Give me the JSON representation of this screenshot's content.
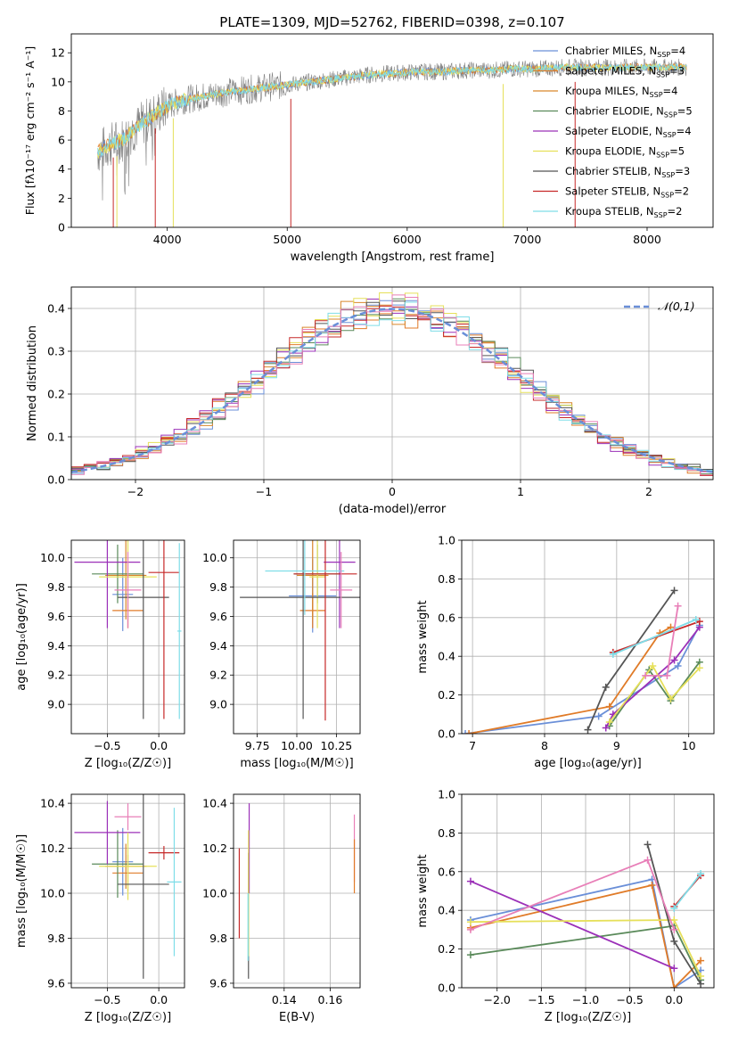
{
  "figure": {
    "title": "PLATE=1309, MJD=52762, FIBERID=0398, z=0.107",
    "colors": {
      "Chabrier MILES": "#6a8fd8",
      "Salpeter MILES": "#e07b28",
      "Kroupa MILES": "#d9862b",
      "Chabrier ELODIE": "#5a8a5a",
      "Salpeter ELODIE": "#9b30b8",
      "Kroupa ELODIE": "#e6e05a",
      "Chabrier STELIB": "#555555",
      "Salpeter STELIB": "#c62828",
      "Kroupa STELIB": "#7fdde8",
      "extra": "#e87fb8",
      "data": "#808080"
    }
  },
  "chart_data": [
    {
      "id": "spectrum",
      "type": "line",
      "xlabel": "wavelength [Angstrom, rest frame]",
      "ylabel": "Flux [fλ10⁻¹⁷ erg cm⁻² s⁻¹ A⁻¹]",
      "xlim": [
        3200,
        8550
      ],
      "ylim": [
        0,
        13.3
      ],
      "xticks": [
        4000,
        5000,
        6000,
        7000,
        8000
      ],
      "yticks": [
        0,
        2,
        4,
        6,
        8,
        10,
        12
      ],
      "grid": false,
      "legend_position": "right",
      "legend": [
        {
          "label": "Chabrier MILES, N",
          "sub": "SSP",
          "tail": "=4",
          "color": "#6a8fd8"
        },
        {
          "label": "Salpeter MILES, N",
          "sub": "SSP",
          "tail": "=3",
          "color": "#e07b28"
        },
        {
          "label": "Kroupa MILES, N",
          "sub": "SSP",
          "tail": "=4",
          "color": "#d9862b"
        },
        {
          "label": "Chabrier ELODIE, N",
          "sub": "SSP",
          "tail": "=5",
          "color": "#5a8a5a"
        },
        {
          "label": "Salpeter ELODIE, N",
          "sub": "SSP",
          "tail": "=4",
          "color": "#9b30b8"
        },
        {
          "label": "Kroupa ELODIE, N",
          "sub": "SSP",
          "tail": "=5",
          "color": "#e6e05a"
        },
        {
          "label": "Chabrier STELIB, N",
          "sub": "SSP",
          "tail": "=3",
          "color": "#555555"
        },
        {
          "label": "Salpeter STELIB, N",
          "sub": "SSP",
          "tail": "=2",
          "color": "#c62828"
        },
        {
          "label": "Kroupa STELIB, N",
          "sub": "SSP",
          "tail": "=2",
          "color": "#7fdde8"
        }
      ],
      "continuum": [
        [
          3420,
          5.2
        ],
        [
          3550,
          5.8
        ],
        [
          3650,
          6.1
        ],
        [
          3700,
          6.6
        ],
        [
          3800,
          7.2
        ],
        [
          3900,
          7.8
        ],
        [
          4000,
          8.3
        ],
        [
          4100,
          8.7
        ],
        [
          4300,
          9.0
        ],
        [
          4500,
          9.3
        ],
        [
          4700,
          9.5
        ],
        [
          4900,
          9.7
        ],
        [
          5100,
          9.9
        ],
        [
          5300,
          10.1
        ],
        [
          5500,
          10.3
        ],
        [
          5700,
          10.5
        ],
        [
          5900,
          10.6
        ],
        [
          6100,
          10.7
        ],
        [
          6300,
          10.7
        ],
        [
          6500,
          10.8
        ],
        [
          6700,
          10.8
        ],
        [
          6900,
          10.9
        ],
        [
          7100,
          10.9
        ],
        [
          7300,
          11.0
        ],
        [
          7500,
          11.0
        ],
        [
          7700,
          11.0
        ],
        [
          7900,
          11.0
        ],
        [
          8100,
          11.0
        ],
        [
          8300,
          11.0
        ]
      ],
      "dips": [
        [
          3550,
          0
        ],
        [
          3580,
          0
        ],
        [
          3900,
          0
        ],
        [
          4050,
          0
        ],
        [
          5030,
          0
        ],
        [
          6800,
          0
        ],
        [
          7400,
          0
        ]
      ]
    },
    {
      "id": "residual-histogram",
      "type": "bar",
      "xlabel": "(data-model)/error",
      "ylabel": "Normed distribution",
      "xlim": [
        -2.5,
        2.5
      ],
      "ylim": [
        0,
        0.45
      ],
      "xticks": [
        -2,
        -1,
        0,
        1,
        2
      ],
      "yticks": [
        0.0,
        0.1,
        0.2,
        0.3,
        0.4
      ],
      "grid": true,
      "legend": [
        {
          "label": "𝒩(0,1)",
          "color": "#6a8fd8",
          "style": "dashed"
        }
      ],
      "bin_width": 0.1
    },
    {
      "id": "age-vs-Z",
      "type": "scatter",
      "xlabel": "Z [log₁₀(Z/Z☉)]",
      "ylabel": "age  [log₁₀(age/yr)]",
      "xlim": [
        -0.85,
        0.25
      ],
      "ylim": [
        8.8,
        10.12
      ],
      "xticks": [
        -0.5,
        0.0
      ],
      "yticks": [
        9.0,
        9.2,
        9.4,
        9.6,
        9.8,
        10.0
      ],
      "grid": true,
      "points": [
        {
          "series": "Chabrier MILES",
          "x": -0.35,
          "xerr": 0.1,
          "y": 9.75,
          "yerr": 0.25
        },
        {
          "series": "Salpeter MILES",
          "x": -0.3,
          "xerr": 0.15,
          "y": 9.64,
          "yerr": 0.12
        },
        {
          "series": "Kroupa MILES",
          "x": -0.32,
          "xerr": 0.2,
          "y": 9.88,
          "yerr": 0.3
        },
        {
          "series": "Chabrier ELODIE",
          "x": -0.4,
          "xerr": 0.25,
          "y": 9.89,
          "yerr": 0.2
        },
        {
          "series": "Salpeter ELODIE",
          "x": -0.5,
          "xerr": 0.32,
          "y": 9.97,
          "yerr": 0.45
        },
        {
          "series": "Kroupa ELODIE",
          "x": -0.3,
          "xerr": 0.28,
          "y": 9.87,
          "yerr": 0.35
        },
        {
          "series": "Chabrier STELIB",
          "x": -0.15,
          "xerr": 0.25,
          "y": 9.73,
          "yerr": 0.83
        },
        {
          "series": "Salpeter STELIB",
          "x": 0.05,
          "xerr": 0.15,
          "y": 9.9,
          "yerr": 1.0
        },
        {
          "series": "Kroupa STELIB",
          "x": 0.2,
          "xerr": 0.02,
          "y": 9.5,
          "yerr": 0.6
        },
        {
          "series": "extra",
          "x": -0.3,
          "xerr": 0.13,
          "y": 9.78,
          "yerr": 0.26
        }
      ]
    },
    {
      "id": "age-vs-mass",
      "type": "scatter",
      "xlabel": "mass [log₁₀(M/M☉)]",
      "ylabel": "",
      "xlim": [
        9.6,
        10.4
      ],
      "ylim": [
        8.8,
        10.12
      ],
      "xticks": [
        9.75,
        10.0,
        10.25
      ],
      "yticks": [
        9.0,
        9.2,
        9.4,
        9.6,
        9.8,
        10.0
      ],
      "grid": true,
      "points": [
        {
          "series": "Chabrier MILES",
          "x": 10.1,
          "xerr": 0.15,
          "y": 9.74,
          "yerr": 0.25
        },
        {
          "series": "Salpeter MILES",
          "x": 10.1,
          "xerr": 0.08,
          "y": 9.64,
          "yerr": 0.12
        },
        {
          "series": "Kroupa MILES",
          "x": 10.1,
          "xerr": 0.1,
          "y": 9.88,
          "yerr": 0.3
        },
        {
          "series": "Chabrier ELODIE",
          "x": 10.13,
          "xerr": 0.15,
          "y": 9.89,
          "yerr": 0.2
        },
        {
          "series": "Salpeter ELODIE",
          "x": 10.27,
          "xerr": 0.1,
          "y": 9.97,
          "yerr": 0.45
        },
        {
          "series": "Kroupa ELODIE",
          "x": 10.13,
          "xerr": 0.05,
          "y": 9.87,
          "yerr": 0.35
        },
        {
          "series": "Chabrier STELIB",
          "x": 10.04,
          "xerr": 0.4,
          "y": 9.73,
          "yerr": 0.83
        },
        {
          "series": "Salpeter STELIB",
          "x": 10.18,
          "xerr": 0.2,
          "y": 9.89,
          "yerr": 1.0
        },
        {
          "series": "Kroupa STELIB",
          "x": 10.05,
          "xerr": 0.25,
          "y": 9.91,
          "yerr": 0.3
        },
        {
          "series": "extra",
          "x": 10.28,
          "xerr": 0.07,
          "y": 9.78,
          "yerr": 0.26
        }
      ]
    },
    {
      "id": "weight-vs-age",
      "type": "line",
      "xlabel": "age  [log₁₀(age/yr)]",
      "ylabel": "mass weight",
      "xlim": [
        6.85,
        10.35
      ],
      "ylim": [
        0,
        1.0
      ],
      "xticks": [
        7,
        8,
        9,
        10
      ],
      "yticks": [
        0.0,
        0.2,
        0.4,
        0.6,
        0.8,
        1.0
      ],
      "grid": true,
      "series": [
        {
          "name": "Chabrier MILES",
          "x": [
            6.9,
            8.75,
            9.85,
            10.15
          ],
          "y": [
            0.0,
            0.09,
            0.35,
            0.56
          ]
        },
        {
          "name": "Salpeter MILES",
          "x": [
            6.95,
            8.9,
            9.6,
            9.75
          ],
          "y": [
            0.0,
            0.14,
            0.52,
            0.55
          ]
        },
        {
          "name": "Chabrier ELODIE",
          "x": [
            8.9,
            9.45,
            9.75,
            10.15
          ],
          "y": [
            0.04,
            0.33,
            0.17,
            0.37
          ]
        },
        {
          "name": "Salpeter ELODIE",
          "x": [
            8.85,
            8.95,
            9.8,
            10.15
          ],
          "y": [
            0.03,
            0.1,
            0.38,
            0.55
          ]
        },
        {
          "name": "Kroupa ELODIE",
          "x": [
            8.9,
            9.5,
            9.75,
            10.15
          ],
          "y": [
            0.06,
            0.35,
            0.18,
            0.34
          ]
        },
        {
          "name": "Chabrier STELIB",
          "x": [
            8.6,
            8.85,
            9.8
          ],
          "y": [
            0.02,
            0.24,
            0.74
          ]
        },
        {
          "name": "Salpeter STELIB",
          "x": [
            8.95,
            10.15
          ],
          "y": [
            0.42,
            0.58
          ]
        },
        {
          "name": "Kroupa STELIB",
          "x": [
            8.95,
            10.1
          ],
          "y": [
            0.41,
            0.59
          ]
        },
        {
          "name": "extra",
          "x": [
            9.4,
            9.7,
            9.85
          ],
          "y": [
            0.3,
            0.3,
            0.66
          ]
        }
      ]
    },
    {
      "id": "mass-vs-Z",
      "type": "scatter",
      "xlabel": "Z [log₁₀(Z/Z☉)]",
      "ylabel": "mass [log₁₀(M/M☉)]",
      "xlim": [
        -0.85,
        0.25
      ],
      "ylim": [
        9.58,
        10.44
      ],
      "xticks": [
        -0.5,
        0.0
      ],
      "yticks": [
        9.6,
        9.8,
        10.0,
        10.2,
        10.4
      ],
      "grid": true,
      "points": [
        {
          "series": "Chabrier MILES",
          "x": -0.35,
          "xerr": 0.1,
          "y": 10.14,
          "yerr": 0.15
        },
        {
          "series": "Salpeter MILES",
          "x": -0.3,
          "xerr": 0.15,
          "y": 10.09,
          "yerr": 0.08
        },
        {
          "series": "Kroupa MILES",
          "x": -0.32,
          "xerr": 0.2,
          "y": 10.12,
          "yerr": 0.1
        },
        {
          "series": "Chabrier ELODIE",
          "x": -0.4,
          "xerr": 0.25,
          "y": 10.13,
          "yerr": 0.15
        },
        {
          "series": "Salpeter ELODIE",
          "x": -0.5,
          "xerr": 0.32,
          "y": 10.27,
          "yerr": 0.14
        },
        {
          "series": "Kroupa ELODIE",
          "x": -0.3,
          "xerr": 0.28,
          "y": 10.12,
          "yerr": 0.15
        },
        {
          "series": "Chabrier STELIB",
          "x": -0.15,
          "xerr": 0.25,
          "y": 10.04,
          "yerr": 0.42
        },
        {
          "series": "Salpeter STELIB",
          "x": 0.05,
          "xerr": 0.15,
          "y": 10.18,
          "yerr": 0.03
        },
        {
          "series": "Kroupa STELIB",
          "x": 0.15,
          "xerr": 0.07,
          "y": 10.05,
          "yerr": 0.33
        },
        {
          "series": "extra",
          "x": -0.3,
          "xerr": 0.13,
          "y": 10.34,
          "yerr": 0.06
        }
      ]
    },
    {
      "id": "mass-vs-ebv",
      "type": "scatter",
      "xlabel": "E(B-V)",
      "ylabel": "",
      "xlim": [
        0.118,
        0.173
      ],
      "ylim": [
        9.58,
        10.44
      ],
      "xticks": [
        0.14,
        0.16
      ],
      "yticks": [
        9.6,
        9.8,
        10.0,
        10.2,
        10.4
      ],
      "grid": true,
      "points": [
        {
          "series": "Salpeter STELIB",
          "x": 0.1205,
          "xerr": 0,
          "y": 10.0,
          "yerr": 0.2
        },
        {
          "series": "Chabrier STELIB",
          "x": 0.1245,
          "xerr": 0,
          "y": 9.9,
          "yerr": 0.28
        },
        {
          "series": "Salpeter ELODIE",
          "x": 0.1248,
          "xerr": 0,
          "y": 10.2,
          "yerr": 0.2
        },
        {
          "series": "Kroupa ELODIE",
          "x": 0.1245,
          "xerr": 0,
          "y": 10.0,
          "yerr": 0.28
        },
        {
          "series": "Kroupa STELIB",
          "x": 0.1243,
          "xerr": 0,
          "y": 9.85,
          "yerr": 0.15
        },
        {
          "series": "extra",
          "x": 0.1705,
          "xerr": 0,
          "y": 10.2,
          "yerr": 0.15
        },
        {
          "series": "Salpeter MILES",
          "x": 0.1705,
          "xerr": 0,
          "y": 10.12,
          "yerr": 0.12
        }
      ]
    },
    {
      "id": "weight-vs-Z",
      "type": "line",
      "xlabel": "Z [log₁₀(Z/Z☉)]",
      "ylabel": "mass weight",
      "xlim": [
        -2.4,
        0.45
      ],
      "ylim": [
        0,
        1.0
      ],
      "xticks": [
        -2.0,
        -1.5,
        -1.0,
        -0.5,
        0.0
      ],
      "yticks": [
        0.0,
        0.2,
        0.4,
        0.6,
        0.8,
        1.0
      ],
      "grid": true,
      "series": [
        {
          "name": "Chabrier MILES",
          "x": [
            -2.3,
            -0.25,
            0.0,
            0.3
          ],
          "y": [
            0.35,
            0.56,
            0.0,
            0.09
          ]
        },
        {
          "name": "Salpeter MILES",
          "x": [
            -2.3,
            -0.25,
            0.0,
            0.3
          ],
          "y": [
            0.31,
            0.53,
            0.0,
            0.14
          ]
        },
        {
          "name": "Chabrier ELODIE",
          "x": [
            -2.3,
            0.0,
            0.3
          ],
          "y": [
            0.17,
            0.32,
            0.04
          ]
        },
        {
          "name": "Salpeter ELODIE",
          "x": [
            -2.3,
            0.0
          ],
          "y": [
            0.55,
            0.1
          ]
        },
        {
          "name": "Kroupa ELODIE",
          "x": [
            -2.3,
            0.0,
            0.3
          ],
          "y": [
            0.34,
            0.35,
            0.06
          ]
        },
        {
          "name": "Chabrier STELIB",
          "x": [
            -0.3,
            0.0,
            0.3
          ],
          "y": [
            0.74,
            0.24,
            0.02
          ]
        },
        {
          "name": "Salpeter STELIB",
          "x": [
            0.0,
            0.3
          ],
          "y": [
            0.42,
            0.58
          ]
        },
        {
          "name": "Kroupa STELIB",
          "x": [
            0.0,
            0.3
          ],
          "y": [
            0.41,
            0.59
          ]
        },
        {
          "name": "extra",
          "x": [
            -2.3,
            -0.3,
            0.0
          ],
          "y": [
            0.3,
            0.66,
            0.3
          ]
        }
      ]
    }
  ]
}
